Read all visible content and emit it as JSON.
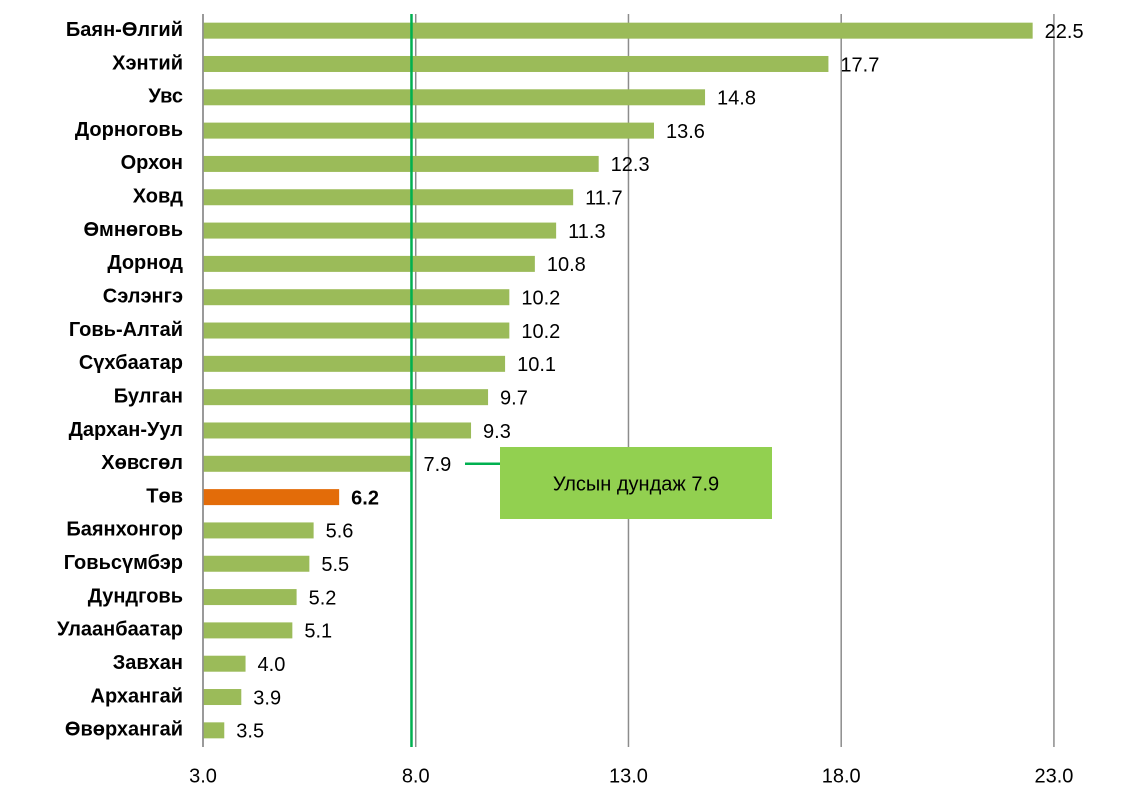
{
  "chart_data": {
    "type": "bar",
    "orientation": "horizontal",
    "categories": [
      "Баян-Өлгий",
      "Хэнтий",
      "Увс",
      "Дорноговь",
      "Орхон",
      "Ховд",
      "Өмнөговь",
      "Дорнод",
      "Сэлэнгэ",
      "Говь-Алтай",
      "Сүхбаатар",
      "Булган",
      "Дархан-Уул",
      "Хөвсгөл",
      "Төв",
      "Баянхонгор",
      "Говьсүмбэр",
      "Дундговь",
      "Улаанбаатар",
      "Завхан",
      "Архангай",
      "Өвөрхангай"
    ],
    "values": [
      22.5,
      17.7,
      14.8,
      13.6,
      12.3,
      11.7,
      11.3,
      10.8,
      10.2,
      10.2,
      10.1,
      9.7,
      9.3,
      7.9,
      6.2,
      5.6,
      5.5,
      5.2,
      5.1,
      4.0,
      3.9,
      3.5
    ],
    "value_labels": [
      "22.5",
      "17.7",
      "14.8",
      "13.6",
      "12.3",
      "11.7",
      "11.3",
      "10.8",
      "10.2",
      "10.2",
      "10.1",
      "9.7",
      "9.3",
      "7.9",
      "6.2",
      "5.6",
      "5.5",
      "5.2",
      "5.1",
      "4.0",
      "3.9",
      "3.5"
    ],
    "color": "#9bbb59",
    "highlight": "Төв",
    "highlight_color": "#e36c09",
    "xlim": [
      3.0,
      24.6
    ],
    "xticks": [
      {
        "value": 3,
        "label": "3.0"
      },
      {
        "value": 8,
        "label": "8.0"
      },
      {
        "value": 13,
        "label": "13.0"
      },
      {
        "value": 18,
        "label": "18.0"
      },
      {
        "value": 23,
        "label": "23.0"
      }
    ],
    "grid": true,
    "average": 7.9,
    "average_color": "#00b050",
    "annotation": "Улсын дундаж 7.9",
    "annotation_color": "#92d050"
  }
}
